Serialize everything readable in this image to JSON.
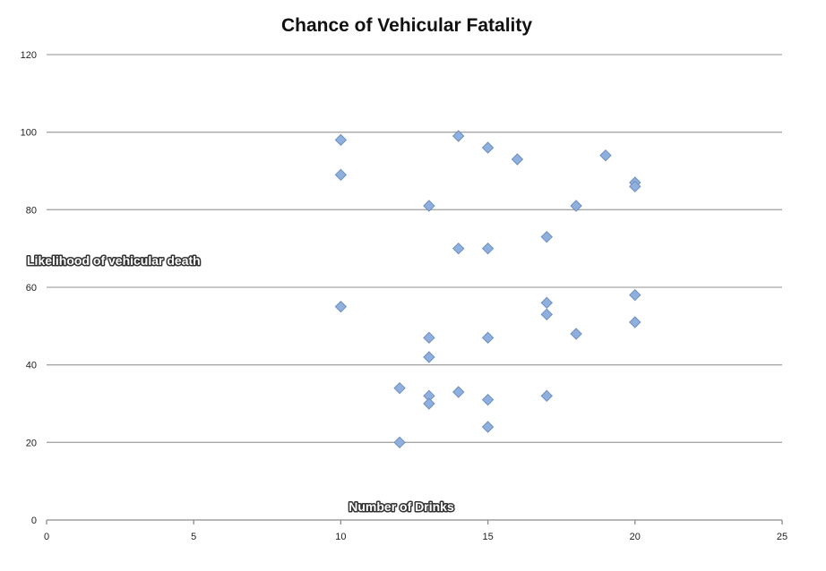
{
  "chart_data": {
    "type": "scatter",
    "title": "Chance of Vehicular Fatality",
    "xlabel": "Number of Drinks",
    "ylabel": "Likelihood of vehicular death",
    "xlim": [
      0,
      25
    ],
    "ylim": [
      0,
      120
    ],
    "x_ticks": [
      0,
      5,
      10,
      15,
      20,
      25
    ],
    "y_ticks": [
      0,
      20,
      40,
      60,
      80,
      100,
      120
    ],
    "grid": "horizontal",
    "legend": "none",
    "marker_color": "#8fb0de",
    "series": [
      {
        "points": [
          [
            10,
            98
          ],
          [
            10,
            89
          ],
          [
            10,
            55
          ],
          [
            12,
            34
          ],
          [
            12,
            20
          ],
          [
            13,
            81
          ],
          [
            13,
            47
          ],
          [
            13,
            42
          ],
          [
            13,
            32
          ],
          [
            13,
            30
          ],
          [
            14,
            99
          ],
          [
            14,
            70
          ],
          [
            14,
            33
          ],
          [
            15,
            96
          ],
          [
            15,
            70
          ],
          [
            15,
            47
          ],
          [
            15,
            31
          ],
          [
            15,
            24
          ],
          [
            16,
            93
          ],
          [
            17,
            73
          ],
          [
            17,
            56
          ],
          [
            17,
            53
          ],
          [
            17,
            32
          ],
          [
            18,
            81
          ],
          [
            18,
            48
          ],
          [
            19,
            94
          ],
          [
            20,
            87
          ],
          [
            20,
            86
          ],
          [
            20,
            58
          ],
          [
            20,
            51
          ]
        ]
      }
    ]
  }
}
